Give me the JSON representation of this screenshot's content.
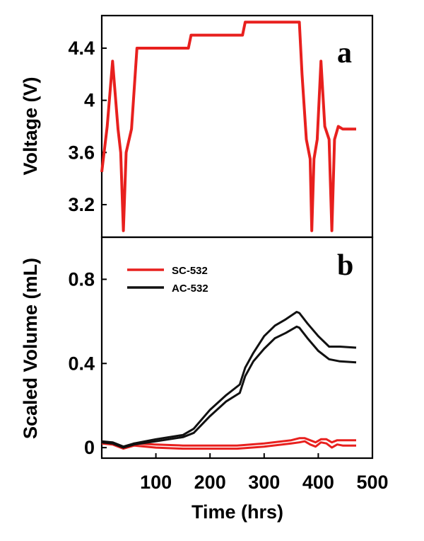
{
  "chart_data": [
    {
      "panel": "a",
      "type": "line",
      "ylabel": "Voltage (V)",
      "yticks": [
        "3.2",
        "3.6",
        "4",
        "4.4"
      ],
      "xlim": [
        0,
        500
      ],
      "ylim": [
        2.95,
        4.65
      ],
      "colors": {
        "series": "#e8201e"
      },
      "series": [
        {
          "name": "",
          "x": [
            0,
            10,
            20,
            30,
            35,
            40,
            45,
            55,
            65,
            160,
            165,
            260,
            265,
            365,
            370,
            378,
            385,
            388,
            392,
            398,
            405,
            412,
            420,
            425,
            430,
            437,
            445,
            470
          ],
          "y": [
            3.45,
            3.8,
            4.3,
            3.78,
            3.6,
            3.0,
            3.6,
            3.78,
            4.4,
            4.4,
            4.5,
            4.5,
            4.6,
            4.6,
            4.2,
            3.7,
            3.55,
            3.0,
            3.55,
            3.7,
            4.3,
            3.8,
            3.7,
            3.0,
            3.7,
            3.8,
            3.78,
            3.78
          ]
        }
      ]
    },
    {
      "panel": "b",
      "type": "line",
      "xlabel": "Time (hrs)",
      "ylabel": "Scaled Volume (mL)",
      "xticks": [
        "100",
        "200",
        "300",
        "400",
        "500"
      ],
      "yticks": [
        "0",
        "0.4",
        "0.8"
      ],
      "xlim": [
        0,
        500
      ],
      "ylim": [
        -0.05,
        1.0
      ],
      "colors": {
        "SC-532": "#e8201e",
        "AC-532": "#111111"
      },
      "series": [
        {
          "name": "SC-532",
          "x": [
            0,
            20,
            40,
            60,
            100,
            150,
            200,
            250,
            300,
            350,
            365,
            375,
            385,
            395,
            405,
            415,
            425,
            435,
            445,
            470
          ],
          "y": [
            0.03,
            0.02,
            0.0,
            0.02,
            0.015,
            0.01,
            0.01,
            0.01,
            0.02,
            0.035,
            0.045,
            0.045,
            0.035,
            0.025,
            0.04,
            0.04,
            0.025,
            0.035,
            0.035,
            0.035
          ]
        },
        {
          "name": "SC-532",
          "x": [
            0,
            20,
            40,
            60,
            100,
            150,
            200,
            250,
            300,
            350,
            365,
            375,
            385,
            395,
            405,
            415,
            425,
            435,
            445,
            470
          ],
          "y": [
            0.02,
            0.015,
            -0.005,
            0.01,
            0.0,
            -0.005,
            -0.005,
            -0.005,
            0.005,
            0.02,
            0.025,
            0.03,
            0.015,
            0.005,
            0.025,
            0.02,
            0.0,
            0.015,
            0.01,
            0.01
          ]
        },
        {
          "name": "AC-532",
          "x": [
            0,
            20,
            40,
            60,
            100,
            150,
            170,
            200,
            230,
            255,
            265,
            280,
            300,
            320,
            340,
            360,
            365,
            380,
            400,
            420,
            440,
            470
          ],
          "y": [
            0.03,
            0.025,
            0.005,
            0.02,
            0.04,
            0.06,
            0.09,
            0.18,
            0.25,
            0.3,
            0.38,
            0.45,
            0.53,
            0.58,
            0.61,
            0.645,
            0.64,
            0.59,
            0.53,
            0.48,
            0.48,
            0.475
          ]
        },
        {
          "name": "AC-532",
          "x": [
            0,
            20,
            40,
            60,
            100,
            150,
            170,
            200,
            230,
            255,
            265,
            280,
            300,
            320,
            340,
            360,
            365,
            380,
            400,
            420,
            440,
            470
          ],
          "y": [
            0.025,
            0.02,
            0.0,
            0.015,
            0.03,
            0.05,
            0.07,
            0.15,
            0.22,
            0.26,
            0.34,
            0.41,
            0.47,
            0.52,
            0.545,
            0.575,
            0.57,
            0.52,
            0.46,
            0.42,
            0.41,
            0.405
          ]
        }
      ],
      "legend": [
        {
          "label": "SC-532",
          "color": "#e8201e"
        },
        {
          "label": "AC-532",
          "color": "#111111"
        }
      ]
    }
  ]
}
